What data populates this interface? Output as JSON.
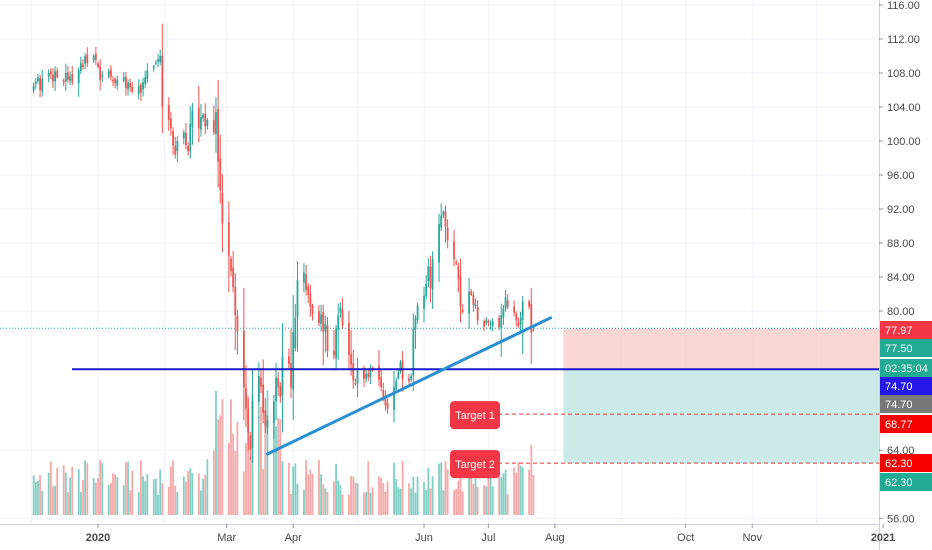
{
  "chart_data": {
    "type": "candlestick",
    "xlabels": [
      "2020",
      "Mar",
      "Apr",
      "Jun",
      "Jul",
      "Aug",
      "Oct",
      "Nov",
      "2021"
    ],
    "yticks": [
      "116.00",
      "112.00",
      "108.00",
      "104.00",
      "100.00",
      "96.00",
      "92.00",
      "88.00",
      "84.00",
      "80.00",
      "64.00",
      "56.00"
    ],
    "ylim": [
      54.8,
      116.6
    ],
    "axis_scale": "piecewise (compressed below 77.5)",
    "price_tags": [
      {
        "label": "77.97",
        "color": "#f23645"
      },
      {
        "label": "77.50",
        "color": "#22ab94"
      },
      {
        "label": "02:35:04",
        "color": "#22ab94"
      },
      {
        "label": "74.70",
        "color": "#2418e6"
      },
      {
        "label": "74.70",
        "color": "#787878"
      },
      {
        "label": "68.77",
        "color": "#f70000"
      },
      {
        "label": "62.30",
        "color": "#f70000"
      },
      {
        "label": "62.30",
        "color": "#22ab94"
      }
    ],
    "annotations": [
      {
        "label": "Target 1",
        "price": 68.77,
        "color": "#f23645"
      },
      {
        "label": "Target 2",
        "price": 62.3,
        "color": "#f23645"
      }
    ],
    "levels": {
      "horizontal_support": 74.7,
      "last_price": 77.97,
      "entry": 74.7,
      "stop": 77.97,
      "target_1": 68.77,
      "target_2": 62.3
    },
    "trendline": {
      "from": {
        "date": "2020-03-20",
        "price": 63.5
      },
      "to": {
        "date": "2020-07-30",
        "price": 79.2
      }
    },
    "position_box": {
      "start": "2020-08-05",
      "entry": 74.7,
      "stop": 77.97,
      "target": 62.3
    },
    "ohlc": {
      "start": "2019-12-02",
      "end": "2020-07-24",
      "closes": [
        106.5,
        107,
        107.5,
        106,
        107.3,
        108,
        107.8,
        107,
        108.2,
        107.5,
        106.9,
        108,
        107.2,
        107.6,
        106.9,
        108.3,
        109.2,
        108.7,
        110,
        109.2,
        110,
        109.5,
        108.7,
        107.2,
        107.8,
        108.2,
        107.5,
        107,
        106.8,
        107.2,
        107.5,
        106.2,
        106.9,
        106.3,
        105.8,
        106.5,
        105.7,
        106.9,
        107.5,
        108.3,
        108.8,
        109.2,
        109.6,
        110,
        104,
        102.5,
        101.5,
        99.5,
        98.4,
        100,
        101,
        99.5,
        98.8,
        102,
        103.6,
        101.5,
        102.8,
        103.1,
        101.7,
        102.5,
        101,
        103.4,
        97.6,
        94.2,
        90.3,
        86.5,
        84.7,
        82.8,
        79.5,
        77.6,
        72.3,
        69.5,
        66.3,
        64.1,
        70.5,
        73.8,
        72.4,
        68.9,
        67.2,
        67.9,
        70.4,
        73.6,
        72.3,
        71,
        76.3,
        75.4,
        72.3,
        77.5,
        79.2,
        83.6,
        84.5,
        82.5,
        81.9,
        80.5,
        79.7,
        78.6,
        79.6,
        77.6,
        78.5,
        77.1,
        76.5,
        77.9,
        79.5,
        80.4,
        78.3,
        76.6,
        75.3,
        73.2,
        72.7,
        74.5,
        73.4,
        74.1,
        73.6,
        74.8,
        74.8,
        73.3,
        72.3,
        70.8,
        69.9,
        69.5,
        72.3,
        73.1,
        74.3,
        75.6,
        73.4,
        73.1,
        73.8,
        77.9,
        79.2,
        80.6,
        81.8,
        83.2,
        85.3,
        82.7,
        86.1,
        90.2,
        91.2,
        91.7,
        89.9,
        88.3,
        86.1,
        85.6,
        83.8,
        80.5,
        79.9,
        82.3,
        81.9,
        80.7,
        80.8,
        78.9,
        78.2,
        78.9,
        78.6,
        78.5,
        78.8,
        78.1,
        79.5,
        80.3,
        81.6,
        80.5,
        79.8,
        78.9,
        78.2,
        79.2,
        81.1,
        80.5,
        77.5,
        77.8
      ]
    }
  }
}
